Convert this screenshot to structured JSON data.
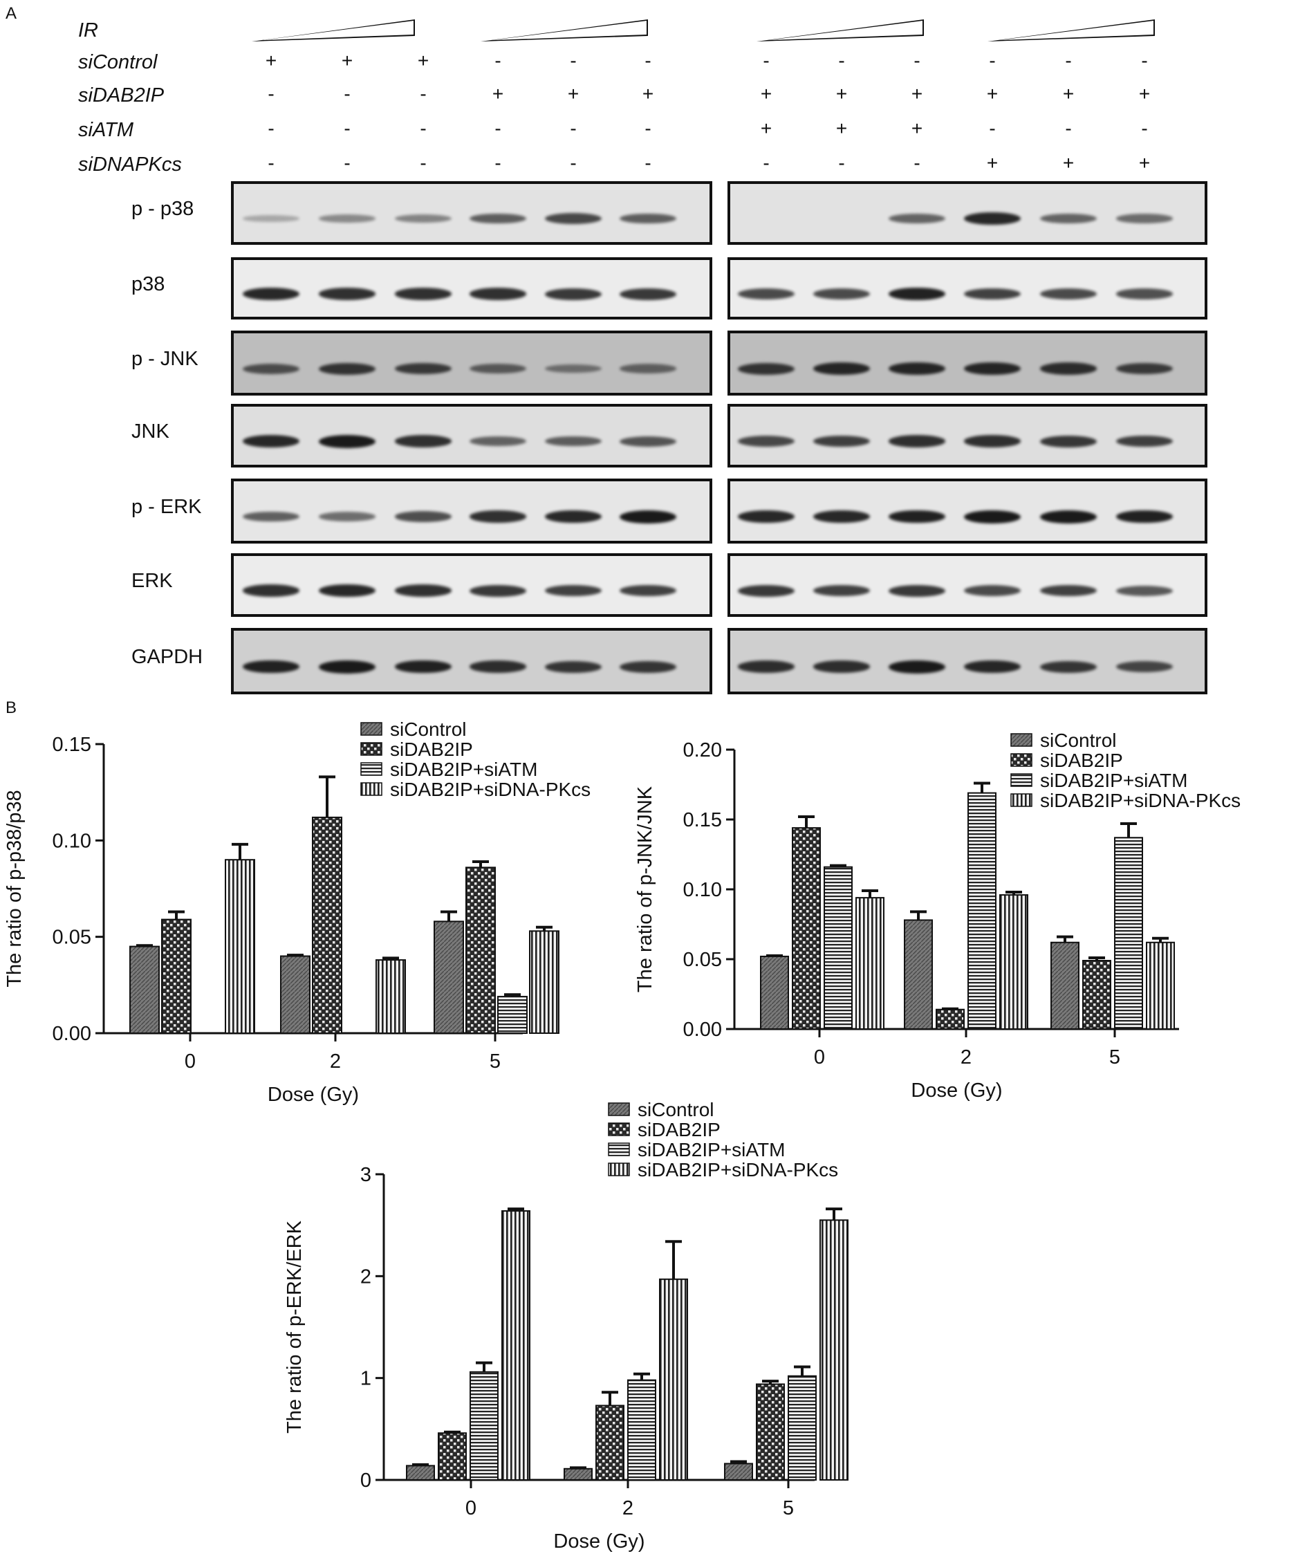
{
  "panel_a": {
    "letter": "A",
    "treatments": [
      {
        "name": "IR",
        "marks": []
      },
      {
        "name": "siControl",
        "marks": [
          "+",
          "+",
          "+",
          "-",
          "-",
          "-",
          "-",
          "-",
          "-",
          "-",
          "-",
          "-"
        ]
      },
      {
        "name": "siDAB2IP",
        "marks": [
          "-",
          "-",
          "-",
          "+",
          "+",
          "+",
          "+",
          "+",
          "+",
          "+",
          "+",
          "+"
        ]
      },
      {
        "name": "siATM",
        "marks": [
          "-",
          "-",
          "-",
          "-",
          "-",
          "-",
          "+",
          "+",
          "+",
          "-",
          "-",
          "-"
        ]
      },
      {
        "name": "siDNAPKcs",
        "marks": [
          "-",
          "-",
          "-",
          "-",
          "-",
          "-",
          "-",
          "-",
          "-",
          "+",
          "+",
          "+"
        ]
      }
    ],
    "blot_rows": [
      "p - p38",
      "p38",
      "p - JNK",
      "JNK",
      "p - ERK",
      "ERK",
      "GAPDH"
    ],
    "band_colors": {
      "band": "#1a1a1a",
      "blot_bg": "#d4d4d4"
    }
  },
  "panel_b": {
    "letter": "B"
  },
  "chart_data": [
    {
      "type": "bar",
      "ylabel": "The ratio of p-p38/p38",
      "xlabel": "Dose (Gy)",
      "categories": [
        "0",
        "2",
        "5"
      ],
      "ylim": [
        0,
        0.15
      ],
      "yticks": [
        "0.00",
        "0.05",
        "0.10",
        "0.15"
      ],
      "legend_position": "top-right",
      "series": [
        {
          "name": "siControl",
          "values": [
            0.045,
            0.04,
            0.058
          ],
          "errors": [
            0.0005,
            0.0005,
            0.005
          ]
        },
        {
          "name": "siDAB2IP",
          "values": [
            0.059,
            0.112,
            0.086
          ],
          "errors": [
            0.004,
            0.021,
            0.003
          ]
        },
        {
          "name": "siDAB2IP+siATM",
          "values": [
            0.0,
            0.0,
            0.019
          ],
          "errors": [
            0,
            0,
            0.001
          ]
        },
        {
          "name": "siDAB2IP+siDNA-PKcs",
          "values": [
            0.09,
            0.038,
            0.053
          ],
          "errors": [
            0.008,
            0.001,
            0.002
          ]
        }
      ]
    },
    {
      "type": "bar",
      "ylabel": "The ratio of p-JNK/JNK",
      "xlabel": "Dose (Gy)",
      "categories": [
        "0",
        "2",
        "5"
      ],
      "ylim": [
        0,
        0.2
      ],
      "yticks": [
        "0.00",
        "0.05",
        "0.10",
        "0.15",
        "0.20"
      ],
      "legend_position": "top-right",
      "series": [
        {
          "name": "siControl",
          "values": [
            0.052,
            0.078,
            0.062
          ],
          "errors": [
            0.0005,
            0.006,
            0.004
          ]
        },
        {
          "name": "siDAB2IP",
          "values": [
            0.144,
            0.014,
            0.049
          ],
          "errors": [
            0.008,
            0.0005,
            0.002
          ]
        },
        {
          "name": "siDAB2IP+siATM",
          "values": [
            0.116,
            0.169,
            0.137
          ],
          "errors": [
            0.001,
            0.007,
            0.01
          ]
        },
        {
          "name": "siDAB2IP+siDNA-PKcs",
          "values": [
            0.094,
            0.096,
            0.062
          ],
          "errors": [
            0.005,
            0.002,
            0.003
          ]
        }
      ]
    },
    {
      "type": "bar",
      "ylabel": "The ratio of p-ERK/ERK",
      "xlabel": "Dose (Gy)",
      "categories": [
        "0",
        "2",
        "5"
      ],
      "ylim": [
        0,
        3
      ],
      "yticks": [
        "0",
        "1",
        "2",
        "3"
      ],
      "legend_position": "top-center",
      "series": [
        {
          "name": "siControl",
          "values": [
            0.14,
            0.11,
            0.16
          ],
          "errors": [
            0.01,
            0.01,
            0.02
          ]
        },
        {
          "name": "siDAB2IP",
          "values": [
            0.46,
            0.73,
            0.94
          ],
          "errors": [
            0.01,
            0.13,
            0.03
          ]
        },
        {
          "name": "siDAB2IP+siATM",
          "values": [
            1.06,
            0.98,
            1.02
          ],
          "errors": [
            0.09,
            0.06,
            0.09
          ]
        },
        {
          "name": "siDAB2IP+siDNA-PKcs",
          "values": [
            2.64,
            1.97,
            2.55
          ],
          "errors": [
            0.02,
            0.37,
            0.11
          ]
        }
      ]
    }
  ]
}
